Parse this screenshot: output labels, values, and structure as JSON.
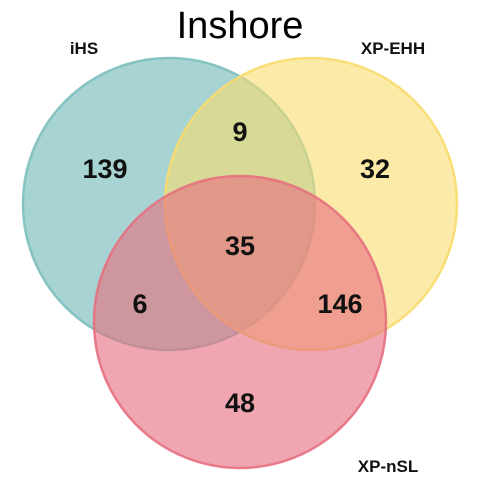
{
  "title": "Inshore",
  "sets": [
    {
      "key": "ihs",
      "label": "iHS",
      "color": "#7dbfbe"
    },
    {
      "key": "xpehh",
      "label": "XP-EHH",
      "color": "#f8dc6e"
    },
    {
      "key": "xpnsl",
      "label": "XP-nSL",
      "color": "#e6707f"
    }
  ],
  "regions": {
    "ihs_only": "139",
    "xpehh_only": "32",
    "xpnsl_only": "48",
    "ihs_xpehh": "9",
    "ihs_xpnsl": "6",
    "xpehh_xpnsl": "146",
    "all_three": "35"
  }
}
